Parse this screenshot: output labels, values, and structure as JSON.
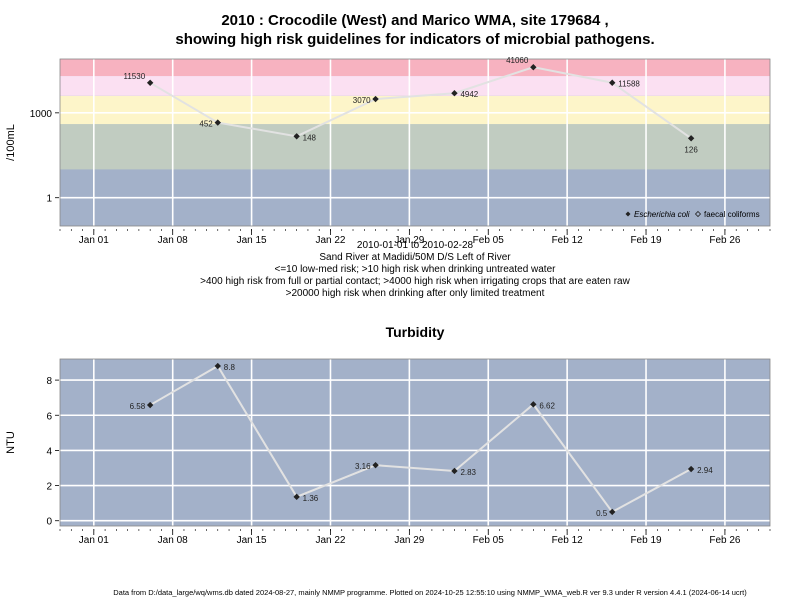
{
  "titles": {
    "main_line1": "2010 : Crocodile (West) and Marico WMA, site 179684 ,",
    "main_line2": "showing high risk guidelines for indicators of microbial pathogens.",
    "turbidity": "Turbidity"
  },
  "subtitle_lines": [
    "2010-01-01 to 2010-02-28",
    "Sand River at Madidi/50M D/S Left of River",
    "<=10 low-med risk; >10 high risk when drinking untreated water",
    ">400 high risk from full or partial contact; >4000 high risk when irrigating crops that are eaten raw",
    ">20000 high risk when drinking after only limited treatment"
  ],
  "footer": "Data from D:/data_large/wq/wms.db dated 2024-08-27, mainly NMMP programme. Plotted on 2024-10-25 12:55:10 using NMMP_WMA_web.R ver 9.3 under R version 4.4.1 (2024-06-14 ucrt)",
  "colors": {
    "panel_bg": "#a3b1c9",
    "band_low": "#a3b1c9",
    "band_10_400": "#c1ccc1",
    "band_400_4000": "#fdf5c9",
    "band_4000_20000": "#fbe0f2",
    "band_above_20000": "#f7b2c0",
    "line": "#e2e2e2",
    "marker": "#222222"
  },
  "chart_data": [
    {
      "type": "line",
      "scale": "log10",
      "ylabel": "/100mL",
      "yticks": [
        1,
        1000
      ],
      "ylim": [
        0.1,
        80000
      ],
      "x_type": "date",
      "xlim": [
        "2009-12-29",
        "2010-03-02"
      ],
      "xticks": [
        "Jan 01",
        "Jan 08",
        "Jan 15",
        "Jan 22",
        "Jan 29",
        "Feb 05",
        "Feb 12",
        "Feb 19",
        "Feb 26"
      ],
      "xtick_dates": [
        "2010-01-01",
        "2010-01-08",
        "2010-01-15",
        "2010-01-22",
        "2010-01-29",
        "2010-02-05",
        "2010-02-12",
        "2010-02-19",
        "2010-02-26"
      ],
      "bands": [
        {
          "from": 0.1,
          "to": 10,
          "color_key": "band_low"
        },
        {
          "from": 10,
          "to": 400,
          "color_key": "band_10_400"
        },
        {
          "from": 400,
          "to": 4000,
          "color_key": "band_400_4000"
        },
        {
          "from": 4000,
          "to": 20000,
          "color_key": "band_4000_20000"
        },
        {
          "from": 20000,
          "to": 80000,
          "color_key": "band_above_20000"
        }
      ],
      "legend": {
        "position": "bottom-right",
        "entries": [
          "Escherichia coli",
          "faecal coliforms"
        ]
      },
      "series": [
        {
          "name": "Escherichia coli",
          "x": [
            "2010-01-06",
            "2010-01-12",
            "2010-01-19",
            "2010-01-26",
            "2010-02-02",
            "2010-02-09",
            "2010-02-16",
            "2010-02-23"
          ],
          "values": [
            11530,
            452,
            148,
            3070,
            4942,
            41060,
            11588,
            126
          ],
          "labels": [
            "11530",
            "452",
            "148",
            "3070",
            "4942",
            "41060",
            "11588",
            "126"
          ]
        }
      ]
    },
    {
      "type": "line",
      "title": "Turbidity",
      "ylabel": "NTU",
      "yticks": [
        0,
        2,
        4,
        6,
        8
      ],
      "ylim": [
        -0.3,
        9.2
      ],
      "x_type": "date",
      "xlim": [
        "2009-12-29",
        "2010-03-02"
      ],
      "xticks": [
        "Jan 01",
        "Jan 08",
        "Jan 15",
        "Jan 22",
        "Jan 29",
        "Feb 05",
        "Feb 12",
        "Feb 19",
        "Feb 26"
      ],
      "xtick_dates": [
        "2010-01-01",
        "2010-01-08",
        "2010-01-15",
        "2010-01-22",
        "2010-01-29",
        "2010-02-05",
        "2010-02-12",
        "2010-02-19",
        "2010-02-26"
      ],
      "series": [
        {
          "x": [
            "2010-01-06",
            "2010-01-12",
            "2010-01-19",
            "2010-01-26",
            "2010-02-02",
            "2010-02-09",
            "2010-02-16",
            "2010-02-23"
          ],
          "values": [
            6.58,
            8.8,
            1.36,
            3.16,
            2.83,
            6.62,
            0.5,
            2.94
          ],
          "labels": [
            "6.58",
            "8.8",
            "1.36",
            "3.16",
            "2.83",
            "6.62",
            "0.5",
            "2.94"
          ]
        }
      ]
    }
  ]
}
